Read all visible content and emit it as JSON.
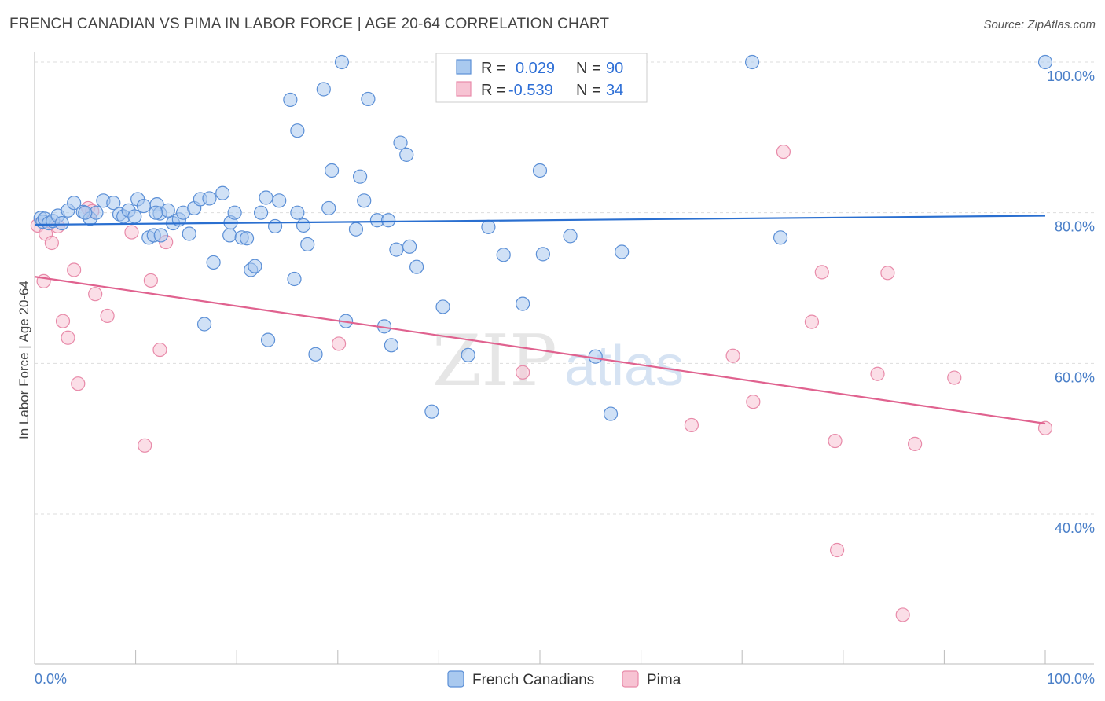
{
  "title": "FRENCH CANADIAN VS PIMA IN LABOR FORCE | AGE 20-64 CORRELATION CHART",
  "source": "Source: ZipAtlas.com",
  "watermark": {
    "zip": "ZIP",
    "atlas": "atlas"
  },
  "colors": {
    "blue_fill": "#a9c9ef",
    "blue_stroke": "#5b8fd6",
    "blue_line": "#2a6fd0",
    "pink_fill": "#f7c3d3",
    "pink_stroke": "#e88aa9",
    "pink_line": "#e0628f",
    "grid": "#dddddd"
  },
  "legend": {
    "rows": [
      {
        "r_label": "R =",
        "r_value": "0.029",
        "n_label": "N =",
        "n_value": "90"
      },
      {
        "r_label": "R =",
        "r_value": "-0.539",
        "n_label": "N =",
        "n_value": "34"
      }
    ]
  },
  "chart_data": {
    "type": "scatter",
    "title": "FRENCH CANADIAN VS PIMA IN LABOR FORCE | AGE 20-64 CORRELATION CHART",
    "xlabel": "",
    "ylabel": "In Labor Force | Age 20-64",
    "xlim": [
      0,
      100
    ],
    "ylim": [
      20,
      101
    ],
    "x_tick_labels": [
      "0.0%",
      "100.0%"
    ],
    "y_ticks": [
      40,
      60,
      80,
      100
    ],
    "y_tick_labels": [
      "40.0%",
      "60.0%",
      "80.0%",
      "100.0%"
    ],
    "grid": true,
    "legend_position": "top-center",
    "series": [
      {
        "name": "French Canadians",
        "trend": {
          "x": [
            0,
            100
          ],
          "y": [
            78.4,
            79.6
          ]
        },
        "points": [
          [
            0.6,
            79.3
          ],
          [
            0.8,
            78.8
          ],
          [
            1.0,
            79.2
          ],
          [
            1.4,
            78.6
          ],
          [
            1.8,
            78.9
          ],
          [
            2.3,
            79.6
          ],
          [
            2.7,
            78.6
          ],
          [
            3.3,
            80.3
          ],
          [
            3.9,
            81.3
          ],
          [
            4.8,
            80.1
          ],
          [
            5.5,
            79.2
          ],
          [
            6.1,
            80.0
          ],
          [
            6.8,
            81.6
          ],
          [
            7.8,
            81.3
          ],
          [
            8.4,
            79.8
          ],
          [
            8.8,
            79.5
          ],
          [
            9.3,
            80.3
          ],
          [
            9.9,
            79.5
          ],
          [
            10.2,
            81.8
          ],
          [
            10.8,
            80.9
          ],
          [
            11.3,
            76.7
          ],
          [
            11.8,
            77.0
          ],
          [
            12.1,
            81.1
          ],
          [
            12.4,
            79.9
          ],
          [
            12.5,
            77.0
          ],
          [
            13.2,
            80.3
          ],
          [
            13.7,
            78.6
          ],
          [
            14.3,
            79.1
          ],
          [
            14.7,
            80.0
          ],
          [
            15.3,
            77.2
          ],
          [
            15.8,
            80.6
          ],
          [
            16.4,
            81.8
          ],
          [
            17.3,
            81.9
          ],
          [
            16.8,
            65.2
          ],
          [
            17.7,
            73.4
          ],
          [
            18.6,
            82.6
          ],
          [
            19.3,
            77.0
          ],
          [
            19.4,
            78.7
          ],
          [
            19.8,
            80.0
          ],
          [
            20.5,
            76.7
          ],
          [
            21.0,
            76.6
          ],
          [
            21.4,
            72.4
          ],
          [
            21.8,
            72.9
          ],
          [
            22.4,
            80.0
          ],
          [
            22.9,
            82.0
          ],
          [
            23.1,
            63.1
          ],
          [
            23.8,
            78.2
          ],
          [
            24.2,
            81.6
          ],
          [
            25.3,
            95.0
          ],
          [
            25.7,
            71.2
          ],
          [
            26.0,
            90.9
          ],
          [
            26.6,
            78.3
          ],
          [
            27.0,
            75.8
          ],
          [
            27.8,
            61.2
          ],
          [
            28.6,
            96.4
          ],
          [
            29.1,
            80.6
          ],
          [
            29.4,
            85.6
          ],
          [
            30.4,
            100.0
          ],
          [
            30.8,
            65.6
          ],
          [
            31.8,
            77.8
          ],
          [
            32.2,
            84.8
          ],
          [
            32.6,
            81.6
          ],
          [
            33.0,
            95.1
          ],
          [
            33.9,
            79.0
          ],
          [
            34.6,
            64.9
          ],
          [
            35.0,
            79.0
          ],
          [
            35.3,
            62.4
          ],
          [
            35.8,
            75.1
          ],
          [
            36.2,
            89.3
          ],
          [
            36.8,
            87.7
          ],
          [
            37.1,
            75.5
          ],
          [
            37.8,
            72.8
          ],
          [
            39.3,
            53.6
          ],
          [
            40.4,
            67.5
          ],
          [
            42.9,
            61.1
          ],
          [
            44.9,
            78.1
          ],
          [
            46.4,
            74.4
          ],
          [
            48.3,
            67.9
          ],
          [
            50.0,
            85.6
          ],
          [
            50.3,
            74.5
          ],
          [
            53.0,
            76.9
          ],
          [
            55.5,
            60.9
          ],
          [
            57.0,
            53.3
          ],
          [
            58.1,
            74.8
          ],
          [
            71.0,
            100.0
          ],
          [
            73.8,
            76.7
          ],
          [
            100.0,
            100.0
          ],
          [
            5.0,
            80.0
          ],
          [
            12.0,
            80.0
          ],
          [
            26.0,
            80.0
          ]
        ]
      },
      {
        "name": "Pima",
        "trend": {
          "x": [
            0,
            100
          ],
          "y": [
            71.5,
            52.0
          ]
        },
        "points": [
          [
            0.3,
            78.3
          ],
          [
            0.9,
            70.9
          ],
          [
            1.1,
            77.2
          ],
          [
            1.7,
            76.0
          ],
          [
            2.3,
            78.2
          ],
          [
            2.8,
            65.6
          ],
          [
            3.3,
            63.4
          ],
          [
            3.9,
            72.4
          ],
          [
            4.3,
            57.3
          ],
          [
            5.3,
            80.6
          ],
          [
            5.7,
            80.2
          ],
          [
            6.0,
            69.2
          ],
          [
            7.2,
            66.3
          ],
          [
            9.6,
            77.4
          ],
          [
            10.9,
            49.1
          ],
          [
            11.5,
            71.0
          ],
          [
            12.4,
            61.8
          ],
          [
            13.0,
            76.1
          ],
          [
            30.1,
            62.6
          ],
          [
            48.3,
            58.8
          ],
          [
            65.0,
            51.8
          ],
          [
            69.1,
            61.0
          ],
          [
            71.1,
            54.9
          ],
          [
            74.1,
            88.1
          ],
          [
            76.9,
            65.5
          ],
          [
            77.9,
            72.1
          ],
          [
            79.2,
            49.7
          ],
          [
            79.4,
            35.2
          ],
          [
            83.4,
            58.6
          ],
          [
            84.4,
            72.0
          ],
          [
            85.9,
            26.6
          ],
          [
            87.1,
            49.3
          ],
          [
            91.0,
            58.1
          ],
          [
            100.0,
            51.4
          ]
        ]
      }
    ]
  }
}
